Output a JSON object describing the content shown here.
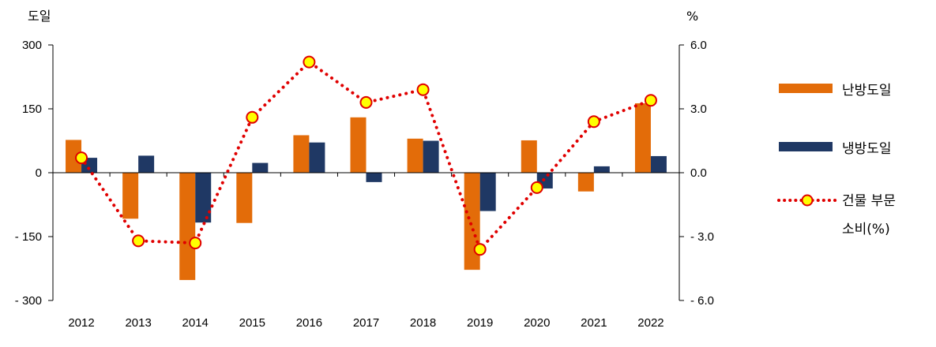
{
  "chart_data": {
    "type": "bar",
    "categories": [
      "2012",
      "2013",
      "2014",
      "2015",
      "2016",
      "2017",
      "2018",
      "2019",
      "2020",
      "2021",
      "2022"
    ],
    "series": [
      {
        "name": "난방도일",
        "axis": "left",
        "kind": "bar",
        "color": "#E36C09",
        "values": [
          77,
          -108,
          -252,
          -118,
          88,
          130,
          80,
          -228,
          76,
          -44,
          163
        ]
      },
      {
        "name": "냉방도일",
        "axis": "left",
        "kind": "bar",
        "color": "#1F3864",
        "values": [
          35,
          40,
          -117,
          23,
          71,
          -22,
          75,
          -90,
          -37,
          15,
          39
        ]
      },
      {
        "name": "건물 부문 소비(%)",
        "axis": "right",
        "kind": "line",
        "color": "#E00000",
        "marker_fill": "#FFFF00",
        "values": [
          0.7,
          -3.2,
          -3.3,
          2.6,
          5.2,
          3.3,
          3.9,
          -3.6,
          -0.7,
          2.4,
          3.4
        ]
      }
    ],
    "y_left": {
      "unit": "도일",
      "ylim": [
        -300,
        300
      ],
      "ticks": [
        300,
        150,
        0,
        -150,
        -300
      ],
      "tick_labels": [
        "300",
        "150",
        "0",
        "- 150",
        "- 300"
      ]
    },
    "y_right": {
      "unit": "%",
      "ylim": [
        -6.0,
        6.0
      ],
      "ticks": [
        6.0,
        3.0,
        0.0,
        -3.0,
        -6.0
      ],
      "tick_labels": [
        "6.0",
        "3.0",
        "0.0",
        "- 3.0",
        "- 6.0"
      ]
    },
    "legend": {
      "position": "right",
      "items": [
        "난방도일",
        "냉방도일",
        "건물 부문"
      ],
      "line_label_second_row": "소비(%)"
    },
    "grid": false
  }
}
